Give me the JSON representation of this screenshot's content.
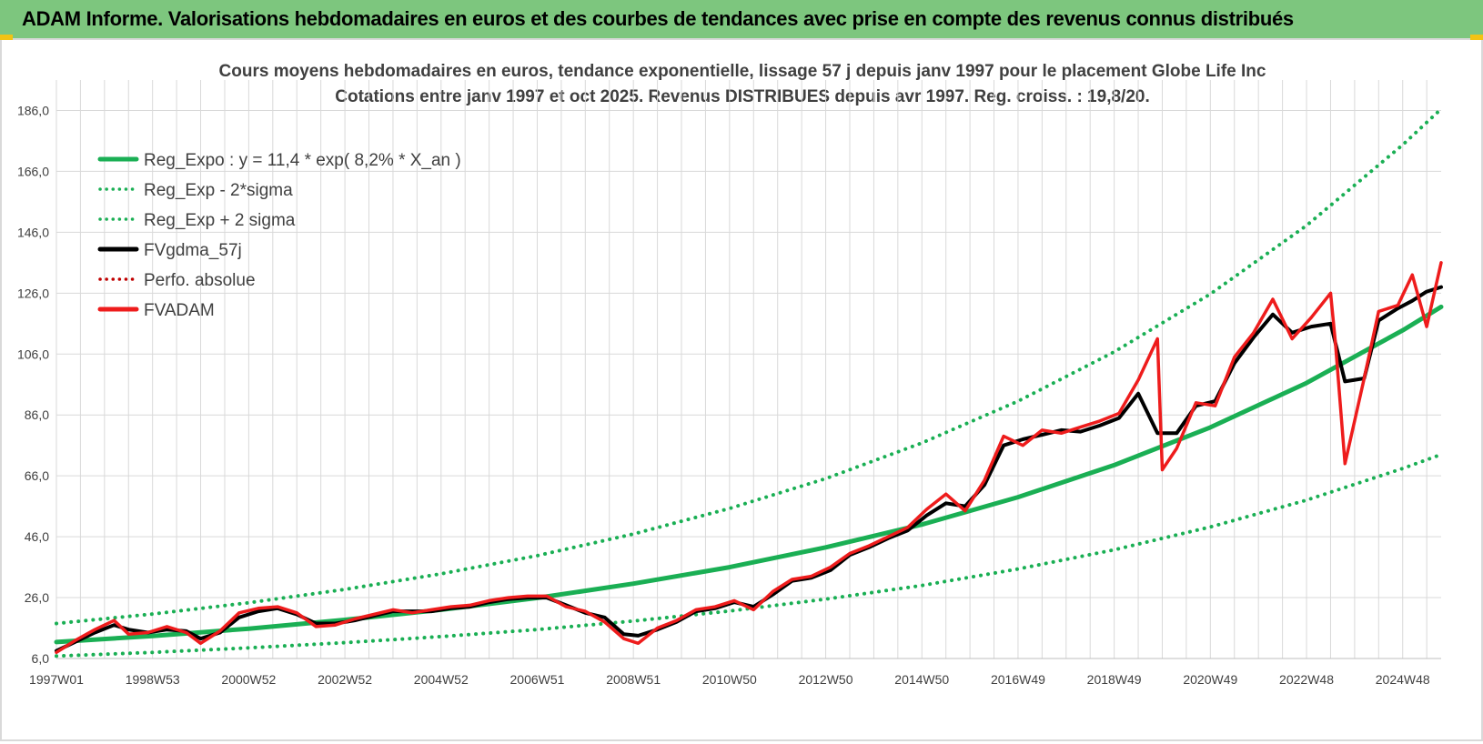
{
  "banner": {
    "title": "ADAM Informe. Valorisations hebdomadaires en euros et des courbes de tendances avec prise en compte des revenus connus distribués"
  },
  "colors": {
    "banner_bg": "#7dc67e",
    "trend_green": "#1aaf54",
    "gdma_black": "#000000",
    "fvadam_red": "#ee1c1c",
    "perfo_red": "#c00000",
    "grid": "#d9d9d9"
  },
  "chart_data": {
    "type": "line",
    "title_line1": "Cours moyens hebdomadaires en euros, tendance exponentielle, lissage 57 j depuis janv 1997 pour le placement Globe Life Inc",
    "title_line2": "Cotations entre janv 1997 et oct 2025. Revenus DISTRIBUES depuis avr 1997. Reg. croiss. : 19,8/20.",
    "x_range": [
      1997.0,
      2025.8
    ],
    "ylim": [
      6.0,
      196.0
    ],
    "y_ticks": [
      "6,0",
      "26,0",
      "46,0",
      "66,0",
      "86,0",
      "106,0",
      "126,0",
      "146,0",
      "166,0",
      "186,0"
    ],
    "y_tick_values": [
      6,
      26,
      46,
      66,
      86,
      106,
      126,
      146,
      166,
      186
    ],
    "x_tick_labels": [
      "1997W01",
      "1998W53",
      "2000W52",
      "2002W52",
      "2004W52",
      "2006W51",
      "2008W51",
      "2010W50",
      "2012W50",
      "2014W50",
      "2016W49",
      "2018W49",
      "2020W49",
      "2022W48",
      "2024W48"
    ],
    "x_tick_values": [
      1997.0,
      1999.0,
      2001.0,
      2003.0,
      2005.0,
      2007.0,
      2009.0,
      2011.0,
      2013.0,
      2015.0,
      2017.0,
      2019.0,
      2021.0,
      2023.0,
      2025.0
    ],
    "grid": true,
    "legend_position": "top-left",
    "legend": [
      {
        "key": "reg_expo",
        "label": "Reg_Expo : y = 11,4 * exp( 8,2% *  X_an )",
        "style": "solid",
        "color": "#1aaf54"
      },
      {
        "key": "reg_minus",
        "label": "Reg_Exp - 2*sigma",
        "style": "dotted",
        "color": "#1aaf54"
      },
      {
        "key": "reg_plus",
        "label": "Reg_Exp + 2 sigma",
        "style": "dotted",
        "color": "#1aaf54"
      },
      {
        "key": "fvgdma",
        "label": "FVgdma_57j",
        "style": "solid",
        "color": "#000000"
      },
      {
        "key": "perfo",
        "label": "Perfo. absolue",
        "style": "dotted",
        "color": "#c00000"
      },
      {
        "key": "fvadam",
        "label": "FVADAM",
        "style": "solid",
        "color": "#ee1c1c"
      }
    ],
    "series": [
      {
        "name": "Reg_Expo : y = 11,4 * exp( 8,2% *  X_an )",
        "x": [
          1997.0,
          1999.0,
          2001.0,
          2003.0,
          2005.0,
          2007.0,
          2009.0,
          2011.0,
          2013.0,
          2015.0,
          2017.0,
          2019.0,
          2021.0,
          2023.0,
          2025.0,
          2025.8
        ],
        "values": [
          11.4,
          13.4,
          15.8,
          18.7,
          22.0,
          25.9,
          30.6,
          36.0,
          42.5,
          50.0,
          59.0,
          69.5,
          81.9,
          96.5,
          113.8,
          121.5
        ]
      },
      {
        "name": "Reg_Exp - 2*sigma",
        "x": [
          1997.0,
          1999.0,
          2001.0,
          2003.0,
          2005.0,
          2007.0,
          2009.0,
          2011.0,
          2013.0,
          2015.0,
          2017.0,
          2019.0,
          2021.0,
          2023.0,
          2025.0,
          2025.8
        ],
        "values": [
          6.8,
          8.0,
          9.5,
          11.2,
          13.2,
          15.5,
          18.3,
          21.6,
          25.5,
          30.0,
          35.4,
          41.7,
          49.2,
          58.0,
          68.4,
          73.0
        ]
      },
      {
        "name": "Reg_Exp + 2 sigma",
        "x": [
          1997.0,
          1999.0,
          2001.0,
          2003.0,
          2005.0,
          2007.0,
          2009.0,
          2011.0,
          2013.0,
          2015.0,
          2017.0,
          2019.0,
          2021.0,
          2023.0,
          2025.0,
          2025.8
        ],
        "values": [
          17.5,
          20.6,
          24.3,
          28.7,
          33.8,
          39.8,
          46.9,
          55.3,
          65.1,
          76.8,
          90.5,
          106.7,
          125.7,
          148.2,
          174.7,
          186.5
        ]
      },
      {
        "name": "FVgdma_57j",
        "x": [
          1997.0,
          1997.4,
          1997.8,
          1998.2,
          1998.5,
          1998.9,
          1999.3,
          1999.7,
          2000.0,
          2000.4,
          2000.8,
          2001.2,
          2001.6,
          2002.0,
          2002.4,
          2002.8,
          2003.2,
          2003.6,
          2004.0,
          2004.4,
          2004.8,
          2005.2,
          2005.6,
          2006.0,
          2006.4,
          2006.8,
          2007.2,
          2007.6,
          2008.0,
          2008.4,
          2008.8,
          2009.1,
          2009.5,
          2009.9,
          2010.3,
          2010.7,
          2011.1,
          2011.5,
          2011.9,
          2012.3,
          2012.7,
          2013.1,
          2013.5,
          2013.9,
          2014.3,
          2014.7,
          2015.1,
          2015.5,
          2015.9,
          2016.3,
          2016.7,
          2017.1,
          2017.5,
          2017.9,
          2018.3,
          2018.7,
          2019.1,
          2019.5,
          2019.9,
          2020.3,
          2020.7,
          2021.1,
          2021.5,
          2021.9,
          2022.3,
          2022.7,
          2023.1,
          2023.5,
          2023.8,
          2024.2,
          2024.5,
          2024.9,
          2025.2,
          2025.5,
          2025.8
        ],
        "values": [
          8.5,
          11.5,
          14.5,
          17.0,
          15.5,
          14.5,
          15.5,
          15.0,
          12.5,
          14.5,
          19.5,
          21.5,
          22.5,
          20.5,
          17.5,
          17.5,
          18.5,
          20.0,
          21.5,
          21.5,
          21.5,
          22.5,
          23.0,
          24.5,
          25.5,
          26.0,
          26.0,
          23.5,
          21.0,
          19.5,
          14.0,
          13.5,
          15.5,
          18.0,
          21.5,
          22.5,
          24.5,
          23.0,
          27.0,
          31.5,
          32.5,
          35.0,
          40.0,
          42.5,
          45.5,
          48.0,
          53.0,
          57.0,
          56.0,
          63.0,
          76.0,
          78.0,
          79.5,
          81.0,
          80.5,
          82.5,
          85.0,
          93.0,
          80.0,
          80.0,
          89.0,
          90.5,
          103.0,
          111.5,
          119.0,
          113.0,
          115.0,
          116.0,
          97.0,
          98.0,
          117.0,
          121.0,
          123.5,
          126.5,
          128.0
        ]
      },
      {
        "name": "FVADAM",
        "x": [
          1997.0,
          1997.4,
          1997.8,
          1998.2,
          1998.5,
          1998.9,
          1999.3,
          1999.7,
          2000.0,
          2000.4,
          2000.8,
          2001.2,
          2001.6,
          2002.0,
          2002.4,
          2002.8,
          2003.2,
          2003.6,
          2004.0,
          2004.4,
          2004.8,
          2005.2,
          2005.6,
          2006.0,
          2006.4,
          2006.8,
          2007.2,
          2007.6,
          2008.0,
          2008.4,
          2008.8,
          2009.1,
          2009.5,
          2009.9,
          2010.3,
          2010.7,
          2011.1,
          2011.5,
          2011.9,
          2012.3,
          2012.7,
          2013.1,
          2013.5,
          2013.9,
          2014.3,
          2014.7,
          2015.1,
          2015.5,
          2015.9,
          2016.3,
          2016.7,
          2017.1,
          2017.5,
          2017.9,
          2018.3,
          2018.7,
          2019.1,
          2019.5,
          2019.9,
          2020.0,
          2020.3,
          2020.7,
          2021.1,
          2021.5,
          2021.9,
          2022.3,
          2022.7,
          2023.1,
          2023.5,
          2023.6,
          2023.8,
          2024.2,
          2024.5,
          2024.9,
          2025.2,
          2025.5,
          2025.8
        ],
        "values": [
          8.0,
          12.0,
          15.5,
          18.5,
          14.0,
          14.5,
          16.5,
          14.5,
          11.0,
          15.0,
          21.0,
          22.5,
          23.0,
          21.0,
          16.5,
          17.0,
          19.0,
          20.5,
          22.0,
          21.0,
          22.0,
          23.0,
          23.5,
          25.0,
          26.0,
          26.5,
          26.5,
          23.0,
          21.5,
          18.0,
          12.5,
          11.0,
          16.0,
          18.5,
          22.0,
          23.0,
          25.0,
          22.0,
          28.0,
          32.0,
          33.0,
          36.0,
          40.5,
          43.0,
          46.0,
          49.0,
          55.0,
          60.0,
          54.5,
          64.5,
          79.0,
          76.0,
          81.0,
          80.0,
          82.0,
          84.0,
          86.5,
          97.5,
          111.0,
          68.0,
          75.0,
          90.0,
          89.0,
          105.0,
          113.0,
          124.0,
          111.0,
          118.0,
          126.0,
          110.0,
          70.0,
          98.0,
          120.0,
          122.0,
          132.0,
          115.0,
          136.0
        ]
      }
    ]
  }
}
